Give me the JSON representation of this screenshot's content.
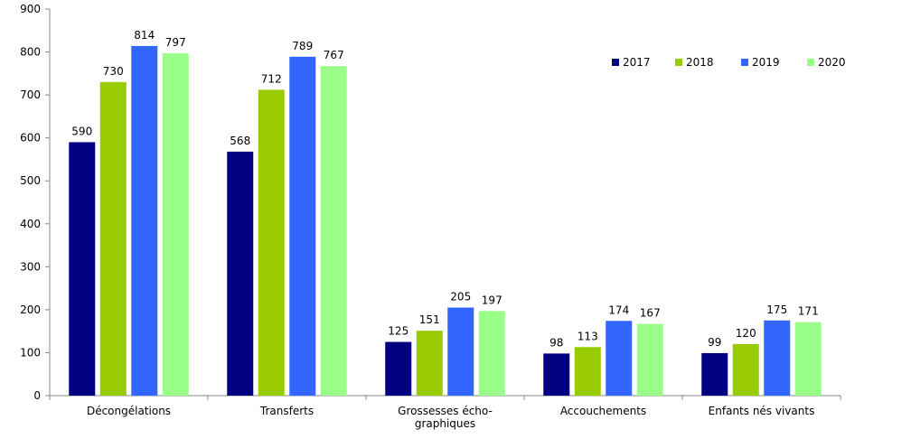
{
  "chart_data": {
    "type": "bar",
    "categories": [
      "Décongélations",
      "Transferts",
      "Grossesses écho-graphiques",
      "Accouchements",
      "Enfants nés vivants"
    ],
    "category_lines": [
      [
        "Décongélations"
      ],
      [
        "Transferts"
      ],
      [
        "Grossesses écho-",
        "graphiques"
      ],
      [
        "Accouchements"
      ],
      [
        "Enfants nés vivants"
      ]
    ],
    "series": [
      {
        "name": "2017",
        "color": "#000080",
        "values": [
          590,
          568,
          125,
          98,
          99
        ]
      },
      {
        "name": "2018",
        "color": "#99CC00",
        "values": [
          730,
          712,
          151,
          113,
          120
        ]
      },
      {
        "name": "2019",
        "color": "#3366FF",
        "values": [
          814,
          789,
          205,
          174,
          175
        ]
      },
      {
        "name": "2020",
        "color": "#99FF88",
        "values": [
          797,
          767,
          197,
          167,
          171
        ]
      }
    ],
    "ylim": [
      0,
      900
    ],
    "yticks": [
      0,
      100,
      200,
      300,
      400,
      500,
      600,
      700,
      800,
      900
    ],
    "grid": false,
    "legend": "top-right",
    "data_labels": true
  }
}
